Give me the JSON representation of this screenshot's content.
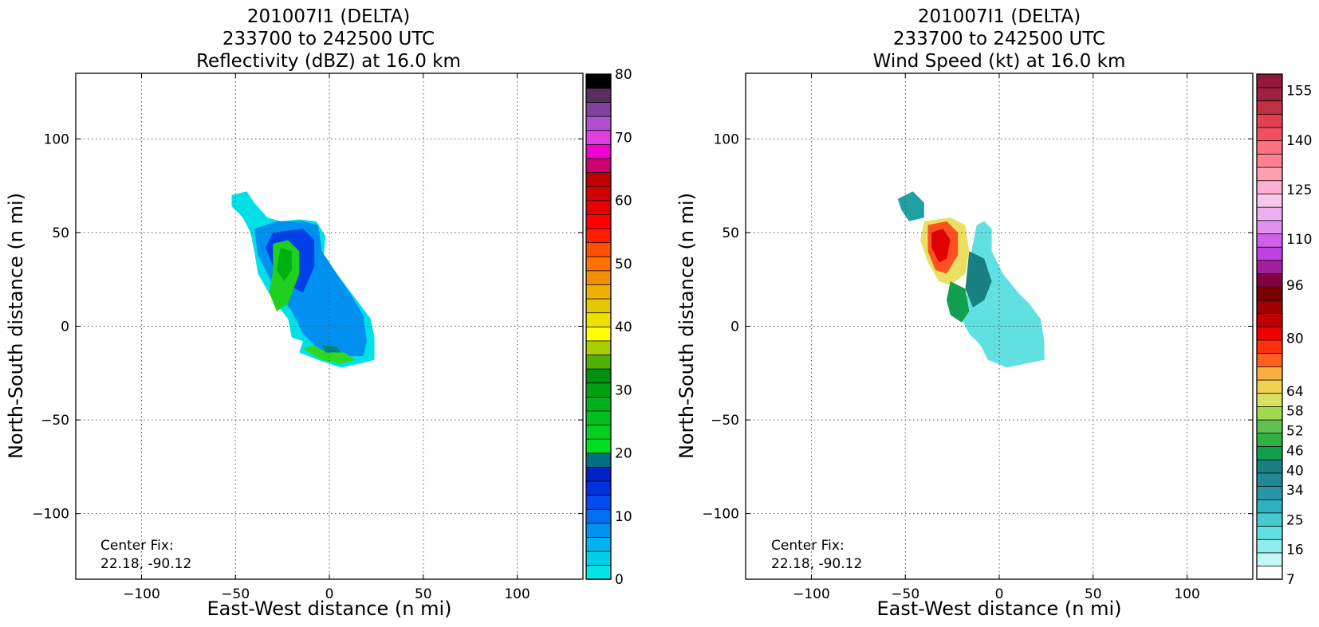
{
  "chart_data": [
    {
      "type": "heatmap",
      "title": [
        "201007I1 (DELTA)",
        "233700 to 242500 UTC",
        "Reflectivity (dBZ) at 16.0 km"
      ],
      "xlabel": "East-West distance (n mi)",
      "ylabel": "North-South distance (n mi)",
      "xlim": [
        -135,
        135
      ],
      "ylim": [
        -135,
        135
      ],
      "xticks": [
        -100,
        -50,
        0,
        50,
        100
      ],
      "yticks": [
        -100,
        -50,
        0,
        50,
        100
      ],
      "xtick_labels": [
        "−100",
        "−50",
        "0",
        "50",
        "100"
      ],
      "ytick_labels": [
        "−100",
        "−50",
        "0",
        "50",
        "100"
      ],
      "grid": true,
      "annotation": [
        "Center Fix:",
        "22.18, -90.12"
      ],
      "colorbar": {
        "levels": [
          0,
          2.5,
          5,
          7.5,
          10,
          12.5,
          15,
          17.5,
          20,
          22.5,
          25,
          27.5,
          30,
          32.5,
          35,
          37.5,
          40,
          42.5,
          45,
          47.5,
          50,
          52.5,
          55,
          57.5,
          60,
          62.5,
          65,
          67.5,
          70,
          72.5,
          75,
          77.5,
          80
        ],
        "colors": [
          "#00e6e6",
          "#00cfe6",
          "#00b4f0",
          "#0093f0",
          "#0070f0",
          "#004cf0",
          "#0030e0",
          "#0020c8",
          "#007080",
          "#00e020",
          "#00d020",
          "#00c020",
          "#00b020",
          "#00a010",
          "#009010",
          "#50b000",
          "#a8d000",
          "#ffff00",
          "#f0e000",
          "#e6c800",
          "#f0b000",
          "#f09000",
          "#ff7000",
          "#ff5000",
          "#ff1e00",
          "#ff0000",
          "#e60000",
          "#d20000",
          "#c00000",
          "#d00070",
          "#f000d0",
          "#e040e0",
          "#b050d0",
          "#8040a0",
          "#583060",
          "#000000"
        ],
        "tick_values": [
          0,
          10,
          20,
          30,
          40,
          50,
          60,
          70,
          80
        ],
        "tick_labels": [
          "0",
          "10",
          "20",
          "30",
          "40",
          "50",
          "60",
          "70",
          "80"
        ]
      },
      "echo_regions": [
        {
          "color": "#00e0e8",
          "points": [
            [
              -52,
              70
            ],
            [
              -44,
              72
            ],
            [
              -40,
              66
            ],
            [
              -33,
              58
            ],
            [
              -26,
              56
            ],
            [
              -16,
              57
            ],
            [
              -7,
              56
            ],
            [
              -2,
              48
            ],
            [
              -3,
              38
            ],
            [
              4,
              28
            ],
            [
              10,
              20
            ],
            [
              16,
              12
            ],
            [
              22,
              4
            ],
            [
              24,
              -6
            ],
            [
              24,
              -18
            ],
            [
              16,
              -20
            ],
            [
              6,
              -22
            ],
            [
              -6,
              -18
            ],
            [
              -16,
              -14
            ],
            [
              -14,
              -8
            ],
            [
              -20,
              -6
            ],
            [
              -22,
              4
            ],
            [
              -30,
              14
            ],
            [
              -38,
              28
            ],
            [
              -40,
              40
            ],
            [
              -42,
              50
            ],
            [
              -46,
              58
            ],
            [
              -52,
              64
            ]
          ]
        },
        {
          "color": "#0090f0",
          "points": [
            [
              -40,
              52
            ],
            [
              -28,
              56
            ],
            [
              -14,
              56
            ],
            [
              -6,
              54
            ],
            [
              -4,
              40
            ],
            [
              4,
              28
            ],
            [
              12,
              16
            ],
            [
              18,
              6
            ],
            [
              20,
              -8
            ],
            [
              18,
              -16
            ],
            [
              4,
              -16
            ],
            [
              -6,
              -12
            ],
            [
              -14,
              -4
            ],
            [
              -20,
              8
            ],
            [
              -30,
              22
            ],
            [
              -38,
              38
            ]
          ]
        },
        {
          "color": "#0040e8",
          "points": [
            [
              -30,
              50
            ],
            [
              -14,
              52
            ],
            [
              -8,
              46
            ],
            [
              -8,
              32
            ],
            [
              -14,
              18
            ],
            [
              -22,
              22
            ],
            [
              -30,
              32
            ],
            [
              -34,
              42
            ]
          ]
        },
        {
          "color": "#20d020",
          "points": [
            [
              -30,
              44
            ],
            [
              -22,
              46
            ],
            [
              -16,
              40
            ],
            [
              -16,
              28
            ],
            [
              -22,
              12
            ],
            [
              -28,
              8
            ],
            [
              -32,
              18
            ],
            [
              -30,
              30
            ]
          ]
        },
        {
          "color": "#00b010",
          "points": [
            [
              -26,
              42
            ],
            [
              -20,
              40
            ],
            [
              -20,
              30
            ],
            [
              -24,
              24
            ],
            [
              -28,
              30
            ]
          ]
        },
        {
          "color": "#30d820",
          "points": [
            [
              -14,
              -12
            ],
            [
              -4,
              -18
            ],
            [
              6,
              -20
            ],
            [
              14,
              -18
            ],
            [
              8,
              -14
            ],
            [
              -2,
              -14
            ],
            [
              -8,
              -10
            ]
          ]
        },
        {
          "color": "#008080",
          "points": [
            [
              -4,
              -10
            ],
            [
              4,
              -11
            ],
            [
              6,
              -14
            ],
            [
              -2,
              -14
            ]
          ]
        }
      ]
    },
    {
      "type": "heatmap",
      "title": [
        "201007I1 (DELTA)",
        "233700 to 242500 UTC",
        "Wind Speed (kt) at 16.0 km"
      ],
      "xlabel": "East-West distance (n mi)",
      "ylabel": "North-South distance (n mi)",
      "xlim": [
        -135,
        135
      ],
      "ylim": [
        -135,
        135
      ],
      "xticks": [
        -100,
        -50,
        0,
        50,
        100
      ],
      "yticks": [
        -100,
        -50,
        0,
        50,
        100
      ],
      "xtick_labels": [
        "−100",
        "−50",
        "0",
        "50",
        "100"
      ],
      "ytick_labels": [
        "−100",
        "−50",
        "0",
        "50",
        "100"
      ],
      "grid": true,
      "annotation": [
        "Center Fix:",
        "22.18, -90.12"
      ],
      "colorbar": {
        "levels": [
          7,
          10,
          13,
          16,
          19,
          22,
          25,
          28,
          31,
          34,
          37,
          40,
          43,
          46,
          49,
          52,
          55,
          58,
          61,
          64,
          72,
          80,
          88,
          96,
          103,
          110,
          118,
          125,
          133,
          140,
          148,
          155,
          160
        ],
        "colors": [
          "#ffffff",
          "#c0f8f8",
          "#90ecec",
          "#60e0e0",
          "#48c8d0",
          "#30b0c0",
          "#2898a8",
          "#208898",
          "#188080",
          "#10a050",
          "#30b040",
          "#60c050",
          "#a0d850",
          "#d8e060",
          "#f0d050",
          "#f8b040",
          "#ff6020",
          "#ff3010",
          "#f00000",
          "#c00000",
          "#a00000",
          "#780000",
          "#800040",
          "#a020a0",
          "#c040e0",
          "#d060e8",
          "#e090f0",
          "#f0b0f0",
          "#f8c8e8",
          "#ffb0d0",
          "#ffa0b0",
          "#ff8090",
          "#ff7080",
          "#f05060",
          "#e04050",
          "#c03040",
          "#a02040",
          "#901838"
        ],
        "tick_values": [
          7,
          16,
          25,
          34,
          40,
          46,
          52,
          58,
          64,
          80,
          96,
          110,
          125,
          140,
          155
        ],
        "tick_labels": [
          "7",
          "16",
          "25",
          "34",
          "40",
          "46",
          "52",
          "58",
          "64",
          "80",
          "96",
          "110",
          "125",
          "140",
          "155"
        ]
      },
      "echo_regions": [
        {
          "color": "#60e0e0",
          "points": [
            [
              -8,
              56
            ],
            [
              -4,
              52
            ],
            [
              -4,
              40
            ],
            [
              2,
              28
            ],
            [
              10,
              18
            ],
            [
              16,
              12
            ],
            [
              22,
              4
            ],
            [
              24,
              -8
            ],
            [
              24,
              -18
            ],
            [
              14,
              -20
            ],
            [
              4,
              -22
            ],
            [
              -6,
              -18
            ],
            [
              -10,
              -10
            ],
            [
              -16,
              -4
            ],
            [
              -20,
              4
            ],
            [
              -18,
              14
            ],
            [
              -14,
              24
            ],
            [
              -16,
              34
            ],
            [
              -14,
              44
            ],
            [
              -12,
              54
            ]
          ]
        },
        {
          "color": "#20a0a0",
          "points": [
            [
              -54,
              68
            ],
            [
              -46,
              72
            ],
            [
              -40,
              66
            ],
            [
              -40,
              58
            ],
            [
              -48,
              56
            ],
            [
              -52,
              62
            ]
          ]
        },
        {
          "color": "#188080",
          "points": [
            [
              -16,
              40
            ],
            [
              -8,
              36
            ],
            [
              -4,
              24
            ],
            [
              -8,
              14
            ],
            [
              -14,
              10
            ],
            [
              -18,
              20
            ]
          ]
        },
        {
          "color": "#e8e060",
          "points": [
            [
              -40,
              56
            ],
            [
              -26,
              58
            ],
            [
              -18,
              54
            ],
            [
              -16,
              40
            ],
            [
              -18,
              28
            ],
            [
              -26,
              22
            ],
            [
              -32,
              24
            ],
            [
              -38,
              34
            ],
            [
              -42,
              46
            ]
          ]
        },
        {
          "color": "#ff5020",
          "points": [
            [
              -38,
              54
            ],
            [
              -28,
              56
            ],
            [
              -22,
              50
            ],
            [
              -22,
              38
            ],
            [
              -28,
              28
            ],
            [
              -34,
              30
            ],
            [
              -38,
              40
            ]
          ]
        },
        {
          "color": "#e00000",
          "points": [
            [
              -36,
              50
            ],
            [
              -30,
              52
            ],
            [
              -26,
              46
            ],
            [
              -28,
              36
            ],
            [
              -32,
              34
            ],
            [
              -36,
              42
            ]
          ]
        },
        {
          "color": "#10a050",
          "points": [
            [
              -26,
              24
            ],
            [
              -18,
              20
            ],
            [
              -16,
              8
            ],
            [
              -20,
              2
            ],
            [
              -26,
              6
            ],
            [
              -28,
              14
            ]
          ]
        }
      ]
    }
  ]
}
